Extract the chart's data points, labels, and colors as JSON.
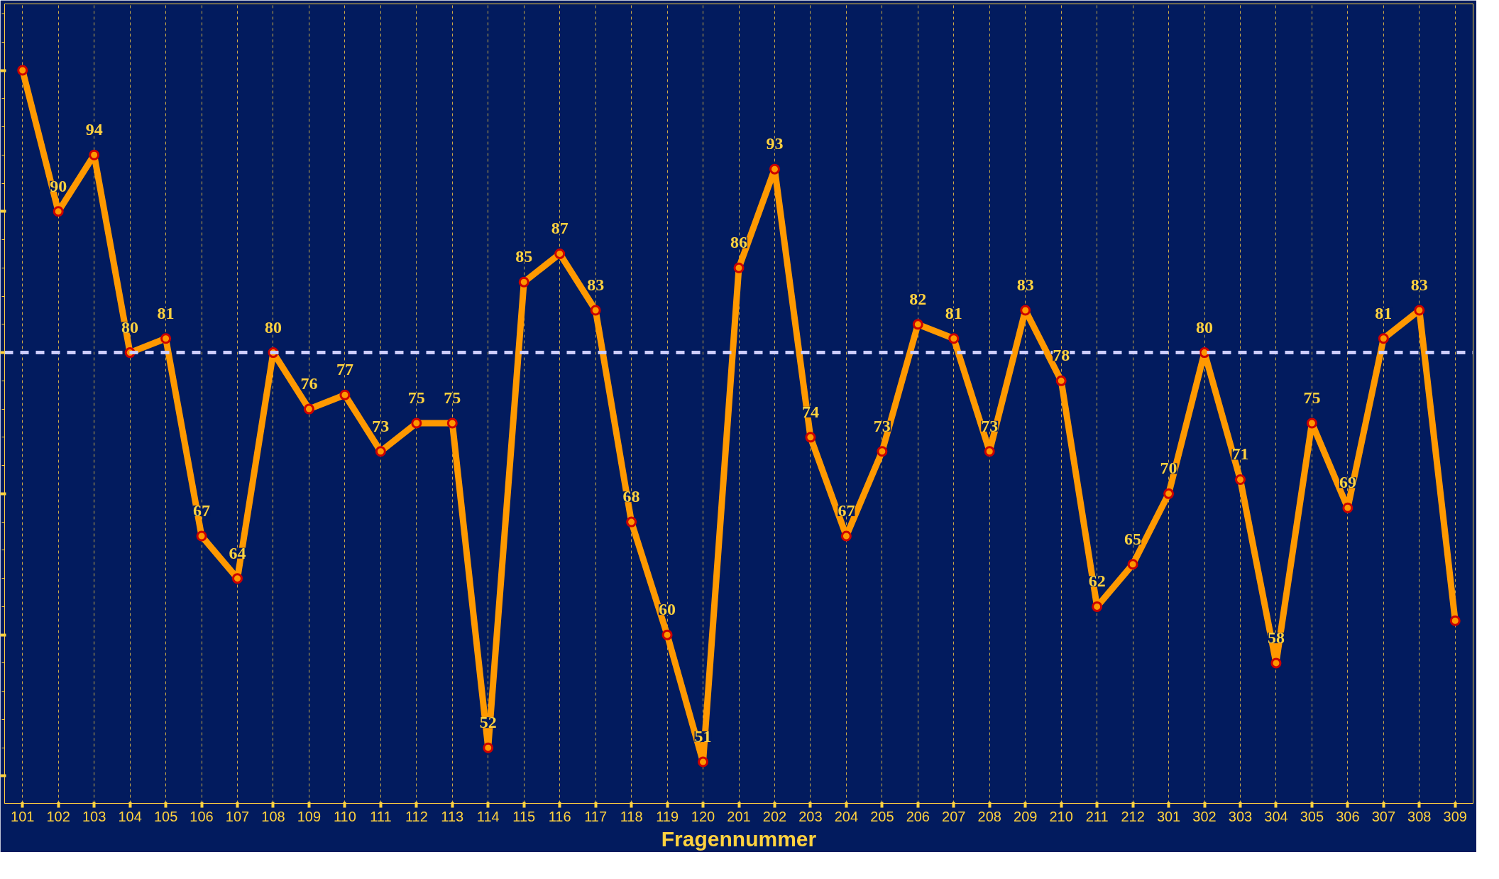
{
  "chart_data": {
    "type": "line",
    "xlabel": "Fragennummer",
    "categories": [
      "101",
      "102",
      "103",
      "104",
      "105",
      "106",
      "107",
      "108",
      "109",
      "110",
      "111",
      "112",
      "113",
      "114",
      "115",
      "116",
      "117",
      "118",
      "119",
      "120",
      "201",
      "202",
      "203",
      "204",
      "205",
      "206",
      "207",
      "208",
      "209",
      "210",
      "211",
      "212",
      "301",
      "302",
      "303",
      "304",
      "305",
      "306",
      "307",
      "308",
      "309"
    ],
    "series": [
      {
        "color": "#ff9900",
        "values": [
          100,
          90,
          94,
          80,
          81,
          67,
          64,
          80,
          76,
          77,
          73,
          75,
          75,
          52,
          85,
          87,
          83,
          68,
          60,
          51,
          86,
          93,
          74,
          67,
          73,
          82,
          81,
          73,
          83,
          78,
          62,
          65,
          70,
          80,
          71,
          58,
          75,
          69,
          81,
          83,
          61
        ],
        "value_labels": [
          null,
          "90",
          "94",
          "80",
          "81",
          "67",
          "64",
          "80",
          "76",
          "77",
          "73",
          "75",
          "75",
          "52",
          "85",
          "87",
          "83",
          "68",
          "60",
          "51",
          "86",
          "93",
          "74",
          "67",
          "73",
          "82",
          "81",
          "73",
          "83",
          "78",
          "62",
          "65",
          "70",
          "80",
          "71",
          "58",
          "75",
          "69",
          "81",
          "83",
          null
        ]
      }
    ],
    "ref_lines": [
      {
        "axis": "y",
        "value": 80,
        "color": "#ccccff",
        "line_style": "dashed"
      }
    ],
    "marker": "circle",
    "line_style": "solid",
    "grid": "x",
    "tick_labels": "x"
  }
}
